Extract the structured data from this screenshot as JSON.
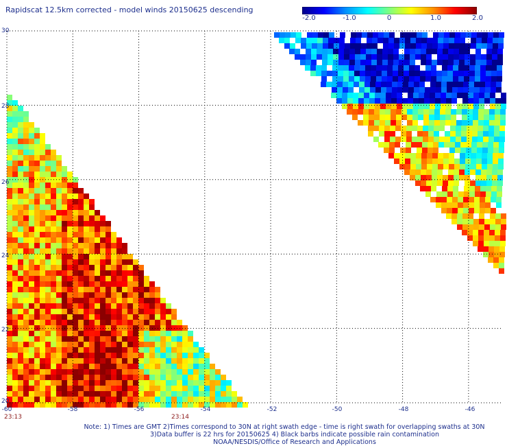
{
  "title": "Rapidscat 12.5km corrected - model winds 20150625 descending",
  "colorbar": {
    "labels": [
      "-2.0",
      "-1.0",
      "0",
      "1.0",
      "2.0"
    ],
    "min": -2.0,
    "max": 2.0,
    "colors": [
      "#00008b",
      "#0000ff",
      "#0090ff",
      "#00ffff",
      "#7fff7f",
      "#ffff00",
      "#ff9000",
      "#ff0000",
      "#8b0000"
    ]
  },
  "map": {
    "lon_range": [
      -60,
      -45
    ],
    "lat_range": [
      20,
      30
    ],
    "x_ticks": [
      "-60",
      "-58",
      "-56",
      "-54",
      "-52",
      "-50",
      "-48",
      "-46"
    ],
    "y_ticks": [
      "30",
      "28",
      "26",
      "24",
      "22",
      "20"
    ],
    "timestamps": [
      "23:13",
      "23:14"
    ]
  },
  "notes": [
    "Note: 1) Times are GMT 2)Times correspond to 30N at right swath edge - time is right swath for overlapping swaths at 30N",
    "3)Data buffer is 22 hrs for 20150625 4) Black barbs indicate possible rain contamination",
    "NOAA/NESDIS/Office of Research and Applications"
  ]
}
